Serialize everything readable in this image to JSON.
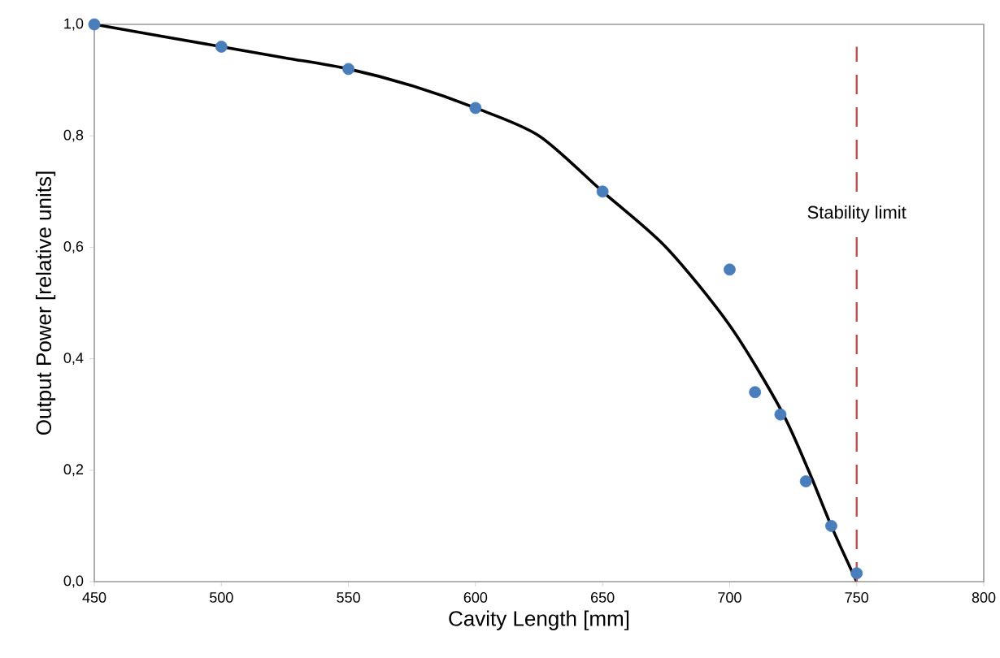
{
  "chart_data": {
    "type": "scatter",
    "xlabel": "Cavity Length  [mm]",
    "ylabel": "Output Power [relative units]",
    "xlim": [
      450,
      800
    ],
    "xticks": [
      450,
      500,
      550,
      600,
      650,
      700,
      750,
      800
    ],
    "ylim": [
      0,
      1
    ],
    "yticks": [
      {
        "value": 0,
        "label": "0,0"
      },
      {
        "value": 0.2,
        "label": "0,2"
      },
      {
        "value": 0.4,
        "label": "0,4"
      },
      {
        "value": 0.6,
        "label": "0,6"
      },
      {
        "value": 0.8,
        "label": "0,8"
      },
      {
        "value": 1,
        "label": "1,0"
      }
    ],
    "grid": false,
    "series": [
      {
        "color": "#4a7ebb",
        "marker": "circle",
        "x": [
          450,
          500,
          550,
          600,
          650,
          700,
          710,
          720,
          730,
          740,
          750
        ],
        "values": [
          1.0,
          0.96,
          0.92,
          0.85,
          0.7,
          0.56,
          0.34,
          0.3,
          0.18,
          0.1,
          0.015
        ]
      },
      {
        "type": "line",
        "color": "#000000",
        "marker": "none",
        "line_style": "solid",
        "x": [
          450,
          500,
          525,
          550,
          575,
          600,
          625,
          650,
          675,
          700,
          720,
          731,
          740,
          750
        ],
        "values": [
          1.0,
          0.96,
          0.94,
          0.92,
          0.89,
          0.85,
          0.8,
          0.7,
          0.6,
          0.46,
          0.31,
          0.2,
          0.1,
          0.0
        ]
      }
    ],
    "ref_lines": [
      {
        "axis": "x",
        "value": 750,
        "label": "Stability limit",
        "color": "#c0504d",
        "line_style": "dashed"
      }
    ]
  }
}
